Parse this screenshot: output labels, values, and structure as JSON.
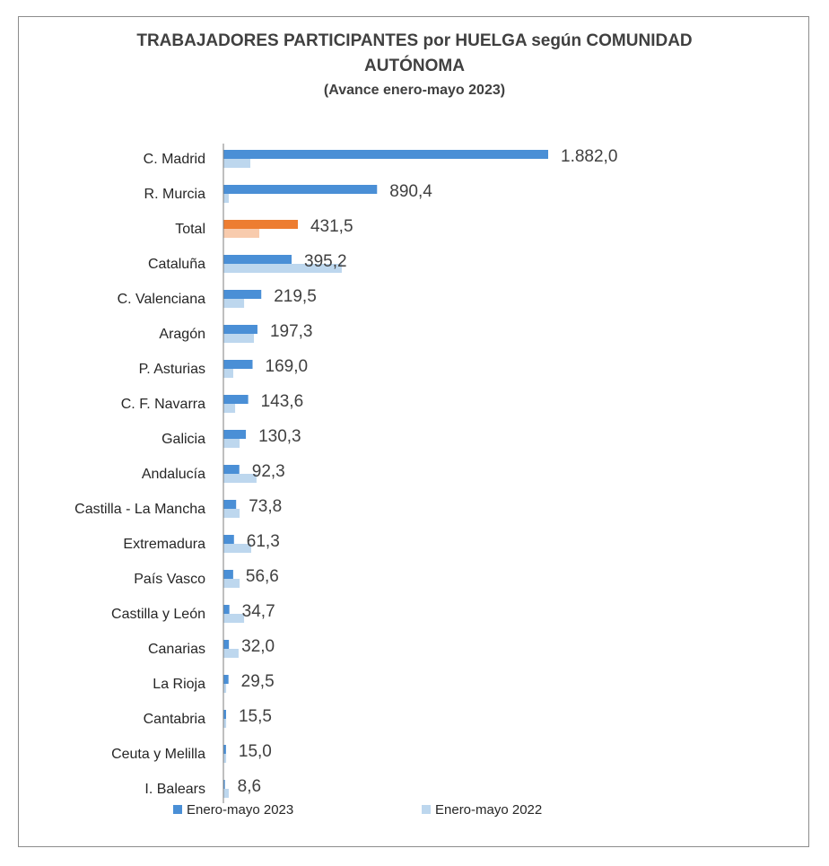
{
  "chart_data": {
    "type": "hbar",
    "title": "TRABAJADORES PARTICIPANTES por HUELGA según COMUNIDAD AUTÓNOMA",
    "subtitle": "(Avance enero-mayo 2023)",
    "categories": [
      "C. Madrid",
      "R. Murcia",
      "Total",
      "Cataluña",
      "C. Valenciana",
      "Aragón",
      "P. Asturias",
      "C. F. Navarra",
      "Galicia",
      "Andalucía",
      "Castilla - La Mancha",
      "Extremadura",
      "País Vasco",
      "Castilla y León",
      "Canarias",
      "La Rioja",
      "Cantabria",
      "Ceuta y Melilla",
      "I. Balears"
    ],
    "highlight": 2,
    "series": [
      {
        "name": "Enero-mayo 2023",
        "color": "#4a8fd6",
        "highlight_color": "#ed7d31",
        "values": [
          1882.0,
          890.4,
          431.5,
          395.2,
          219.5,
          197.3,
          169.0,
          143.6,
          130.3,
          92.3,
          73.8,
          61.3,
          56.6,
          34.7,
          32.0,
          29.5,
          15.5,
          15.0,
          8.6
        ],
        "value_labels": [
          "1.882,0",
          "890,4",
          "431,5",
          "395,2",
          "219,5",
          "197,3",
          "169,0",
          "143,6",
          "130,3",
          "92,3",
          "73,8",
          "61,3",
          "56,6",
          "34,7",
          "32,0",
          "29,5",
          "15,5",
          "15,0",
          "8,6"
        ]
      },
      {
        "name": "Enero-mayo 2022",
        "color": "#bdd7ee",
        "highlight_color": "#f8cbad",
        "values": [
          156,
          31,
          208,
          686,
          120,
          177,
          57,
          68,
          94,
          192,
          94,
          161,
          94,
          120,
          88,
          16,
          16,
          16,
          31
        ]
      }
    ]
  }
}
